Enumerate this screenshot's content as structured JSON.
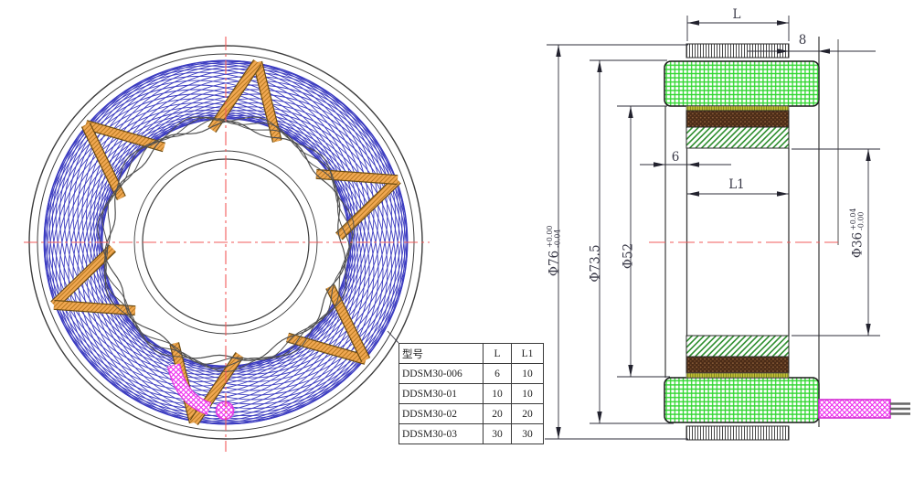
{
  "colors": {
    "blue_coil": "#3b3bc0",
    "orange_bar": "#f0a852",
    "orange_hatch": "#b87820",
    "green_mesh": "#2dd62d",
    "green_diag": "#2f8f2f",
    "brown_fill": "#4a2b17",
    "brown_dot": "#96653e",
    "yellow_fill": "#c2c238",
    "magenta": "#ee2cee",
    "red_centerline": "#f15b5b",
    "line_dark": "#2e2e3a",
    "text": "#3a3a48"
  },
  "front_view": {
    "coil_circle_count": 40,
    "bar_apex_angles_deg": [
      80,
      140,
      200,
      260,
      320,
      20
    ]
  },
  "side_view": {
    "dim_labels": {
      "stack_length": "L",
      "right_offset": "8",
      "left_offset": "6",
      "magnet_length": "L1"
    },
    "diameters": {
      "outer": {
        "label": "Φ76",
        "tol_upper": "+0.00",
        "tol_lower": "-0.04"
      },
      "housing": {
        "label": "Φ73.5"
      },
      "stator_inner": {
        "label": "Φ52"
      },
      "bore": {
        "label": "Φ36",
        "tol_upper": "+0.04",
        "tol_lower": "-0.00"
      }
    }
  },
  "table": {
    "headers": [
      "型号",
      "L",
      "L1"
    ],
    "rows": [
      [
        "DDSM30-006",
        "6",
        "10"
      ],
      [
        "DDSM30-01",
        "10",
        "10"
      ],
      [
        "DDSM30-02",
        "20",
        "20"
      ],
      [
        "DDSM30-03",
        "30",
        "30"
      ]
    ]
  }
}
